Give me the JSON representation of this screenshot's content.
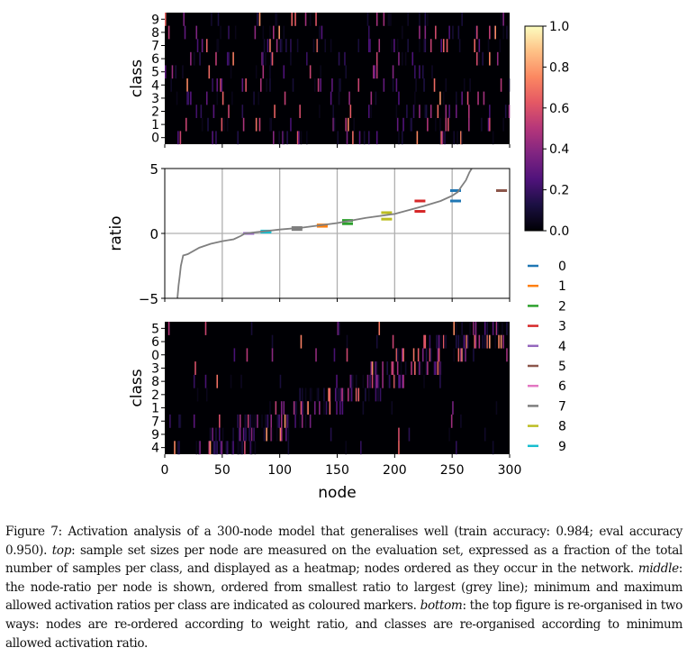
{
  "figure": {
    "caption_label": "Figure 7:",
    "caption_parts": [
      " Activation analysis of a 300-node model that generalises well (train accuracy: 0.984; eval accuracy 0.950). ",
      "top",
      ": sample set sizes per node are measured on the evaluation set, expressed as a fraction of the total number of samples per class, and displayed as a heatmap; nodes ordered as they occur in the network. ",
      "middle",
      ": the node-ratio per node is shown, ordered from smallest ratio to largest (grey line); minimum and maximum allowed activation ratios per class are indicated as coloured markers. ",
      "bottom",
      ": the top figure is re-organised in two ways: nodes are re-ordered according to weight ratio, and classes are re-organised according to minimum allowed activation ratio."
    ]
  },
  "chart_data": [
    {
      "type": "heatmap",
      "name": "top",
      "ylabel": "class",
      "rows": [
        "9",
        "8",
        "7",
        "6",
        "5",
        "4",
        "3",
        "2",
        "1",
        "0"
      ],
      "x_range": [
        0,
        300
      ],
      "colormap": "magma",
      "value_range": [
        0,
        1
      ]
    },
    {
      "type": "line",
      "name": "middle",
      "ylabel": "ratio",
      "ylim": [
        -5,
        5
      ],
      "yticks": [
        "5",
        "0",
        "−5"
      ],
      "xlim": [
        0,
        300
      ],
      "grid": true,
      "line_color": "#7f7f7f",
      "line": {
        "x": [
          11,
          12,
          13,
          14,
          16,
          20,
          30,
          40,
          50,
          60,
          66,
          70,
          80,
          100,
          120,
          150,
          175,
          200,
          225,
          240,
          250,
          255,
          258,
          262,
          265,
          267
        ],
        "y": [
          -5,
          -4.0,
          -3.3,
          -2.5,
          -1.7,
          -1.6,
          -1.1,
          -0.8,
          -0.6,
          -0.45,
          -0.2,
          0.0,
          0.1,
          0.3,
          0.45,
          0.8,
          1.2,
          1.5,
          2.1,
          2.5,
          2.9,
          3.2,
          3.6,
          4.1,
          4.7,
          5
        ]
      },
      "markers": [
        {
          "class": "0",
          "color": "#1f77b4",
          "node": 253,
          "min": 2.5,
          "max": 3.3
        },
        {
          "class": "1",
          "color": "#ff7f0e",
          "node": 137,
          "min": 0.55,
          "max": 0.65
        },
        {
          "class": "2",
          "color": "#2ca02c",
          "node": 159,
          "min": 0.75,
          "max": 1.0
        },
        {
          "class": "3",
          "color": "#d62728",
          "node": 222,
          "min": 1.7,
          "max": 2.5
        },
        {
          "class": "4",
          "color": "#9467bd",
          "node": 73,
          "min": 0.0,
          "max": 0.0
        },
        {
          "class": "5",
          "color": "#8c564b",
          "node": 293,
          "min": 3.3,
          "max": 3.3
        },
        {
          "class": "7",
          "color": "#7f7f7f",
          "node": 115,
          "min": 0.3,
          "max": 0.45
        },
        {
          "class": "8",
          "color": "#bcbd22",
          "node": 193,
          "min": 1.1,
          "max": 1.6
        },
        {
          "class": "9",
          "color": "#17becf",
          "node": 88,
          "min": 0.1,
          "max": 0.18
        }
      ]
    },
    {
      "type": "heatmap",
      "name": "bottom",
      "ylabel": "class",
      "xlabel": "node",
      "rows": [
        "5",
        "6",
        "0",
        "3",
        "8",
        "2",
        "1",
        "7",
        "9",
        "4"
      ],
      "xticks": [
        "0",
        "50",
        "100",
        "150",
        "200",
        "250",
        "300"
      ],
      "x_range": [
        0,
        300
      ]
    },
    {
      "type": "colorbar",
      "ticks": [
        "0.0",
        "0.2",
        "0.4",
        "0.6",
        "0.8",
        "1.0"
      ]
    }
  ],
  "legend": [
    {
      "label": "0",
      "color": "#1f77b4"
    },
    {
      "label": "1",
      "color": "#ff7f0e"
    },
    {
      "label": "2",
      "color": "#2ca02c"
    },
    {
      "label": "3",
      "color": "#d62728"
    },
    {
      "label": "4",
      "color": "#9467bd"
    },
    {
      "label": "5",
      "color": "#8c564b"
    },
    {
      "label": "6",
      "color": "#e377c2"
    },
    {
      "label": "7",
      "color": "#7f7f7f"
    },
    {
      "label": "8",
      "color": "#bcbd22"
    },
    {
      "label": "9",
      "color": "#17becf"
    }
  ]
}
